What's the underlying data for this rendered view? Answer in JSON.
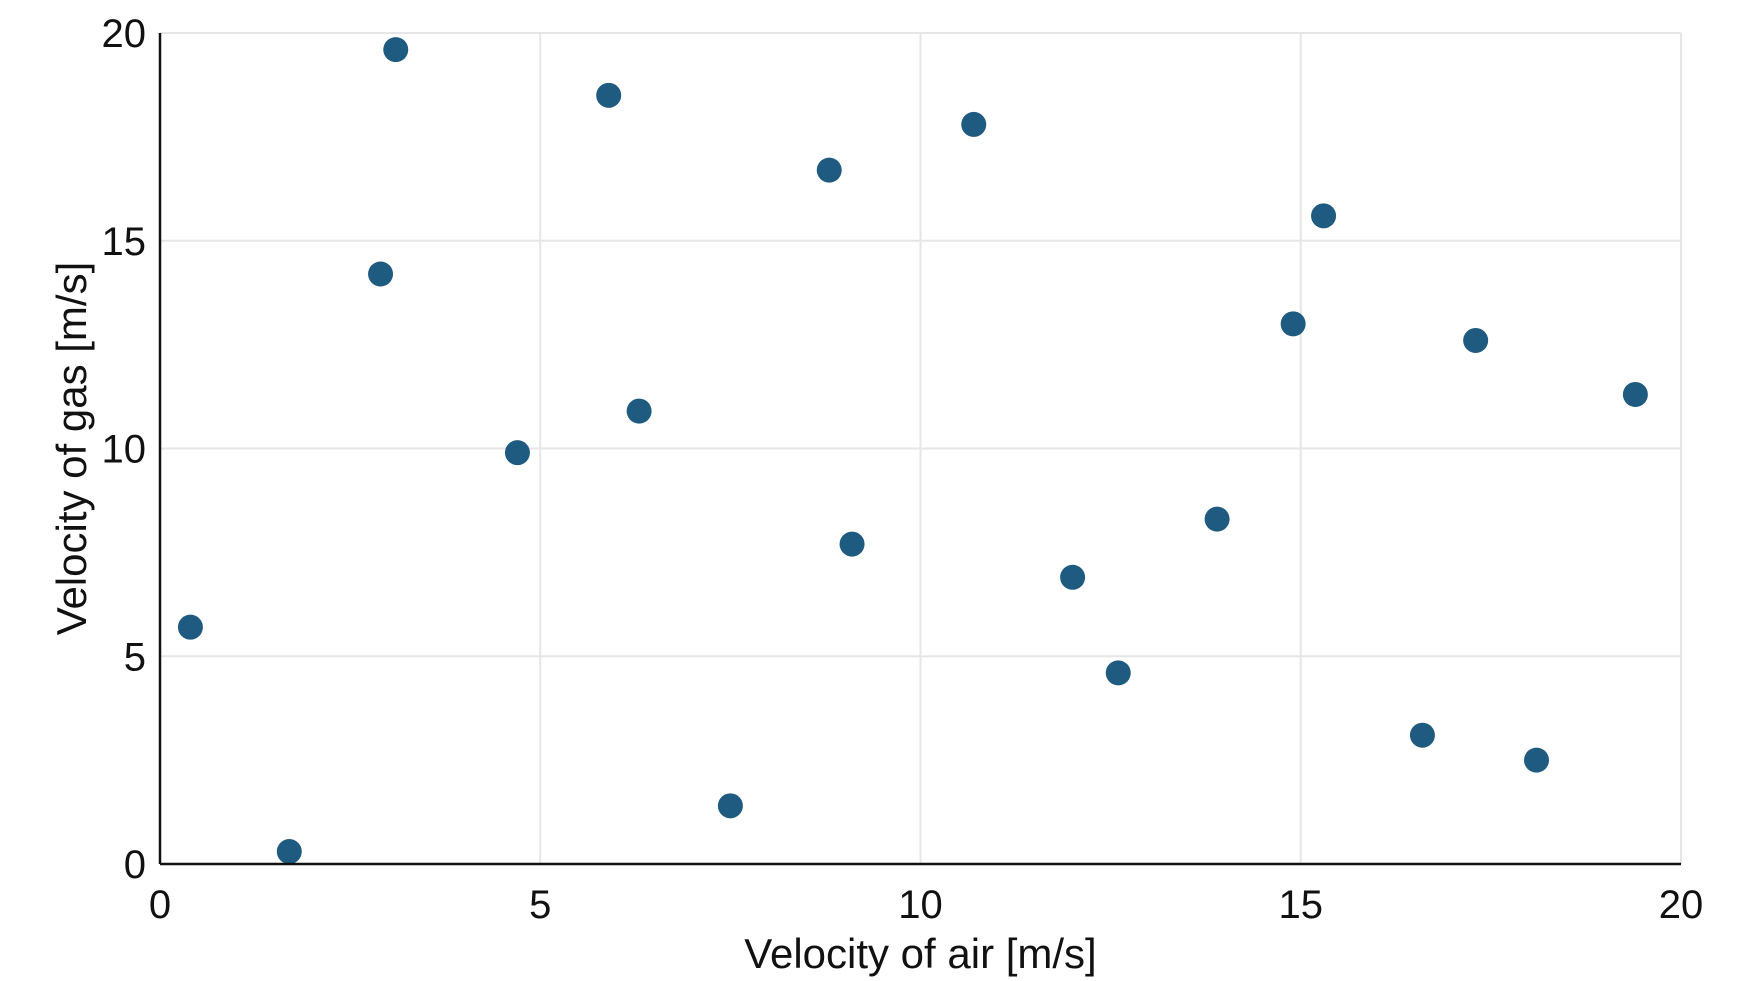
{
  "chart_data": {
    "type": "scatter",
    "title": "",
    "xlabel": "Velocity of air [m/s]",
    "ylabel": "Velocity of gas [m/s]",
    "xlim": [
      0,
      20
    ],
    "ylim": [
      0,
      20
    ],
    "xticks": [
      0,
      5,
      10,
      15,
      20
    ],
    "yticks": [
      0,
      5,
      10,
      15,
      20
    ],
    "xtick_labels": [
      "0",
      "5",
      "10",
      "15",
      "20"
    ],
    "ytick_labels": [
      "0",
      "5",
      "10",
      "15",
      "20"
    ],
    "grid": true,
    "marker_color": "#1f5a80",
    "series": [
      {
        "x": [
          0.4,
          1.7,
          2.9,
          3.1,
          4.7,
          5.9,
          6.3,
          7.5,
          8.8,
          9.1,
          10.7,
          12.0,
          12.6,
          13.9,
          14.9,
          15.3,
          16.6,
          17.3,
          18.1,
          19.4
        ],
        "y": [
          5.7,
          0.3,
          14.2,
          19.6,
          9.9,
          18.5,
          10.9,
          1.4,
          16.7,
          7.7,
          17.8,
          6.9,
          4.6,
          8.3,
          13.0,
          15.6,
          3.1,
          12.6,
          2.5,
          11.3
        ]
      }
    ]
  }
}
